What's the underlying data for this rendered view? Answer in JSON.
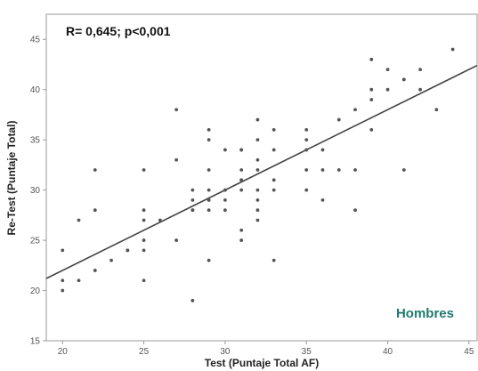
{
  "chart_data": {
    "type": "scatter",
    "annotation": "R= 0,645; p<0,001",
    "group_label": "Hombres",
    "xlabel": "Test (Puntaje Total AF)",
    "ylabel": "Re-Test (Puntaje Total)",
    "xlim": [
      19,
      45.5
    ],
    "ylim": [
      15,
      47.5
    ],
    "x_ticks": [
      20,
      25,
      30,
      35,
      40,
      45
    ],
    "y_ticks": [
      15,
      20,
      25,
      30,
      35,
      40,
      45
    ],
    "grid": false,
    "fit_line": {
      "x": [
        19,
        45.5
      ],
      "y": [
        21.2,
        42.4
      ]
    },
    "points": [
      {
        "x": 20,
        "y": 24
      },
      {
        "x": 20,
        "y": 21
      },
      {
        "x": 20,
        "y": 20
      },
      {
        "x": 21,
        "y": 27
      },
      {
        "x": 21,
        "y": 21
      },
      {
        "x": 22,
        "y": 32
      },
      {
        "x": 22,
        "y": 28
      },
      {
        "x": 22,
        "y": 22
      },
      {
        "x": 23,
        "y": 23
      },
      {
        "x": 24,
        "y": 24
      },
      {
        "x": 24,
        "y": 24
      },
      {
        "x": 25,
        "y": 32
      },
      {
        "x": 25,
        "y": 28
      },
      {
        "x": 25,
        "y": 27
      },
      {
        "x": 25,
        "y": 25
      },
      {
        "x": 25,
        "y": 24
      },
      {
        "x": 25,
        "y": 21
      },
      {
        "x": 26,
        "y": 27
      },
      {
        "x": 27,
        "y": 38
      },
      {
        "x": 27,
        "y": 33
      },
      {
        "x": 27,
        "y": 25
      },
      {
        "x": 28,
        "y": 30
      },
      {
        "x": 28,
        "y": 29
      },
      {
        "x": 28,
        "y": 28
      },
      {
        "x": 28,
        "y": 28
      },
      {
        "x": 28,
        "y": 19
      },
      {
        "x": 29,
        "y": 36
      },
      {
        "x": 29,
        "y": 35
      },
      {
        "x": 29,
        "y": 32
      },
      {
        "x": 29,
        "y": 30
      },
      {
        "x": 29,
        "y": 29
      },
      {
        "x": 29,
        "y": 29
      },
      {
        "x": 29,
        "y": 28
      },
      {
        "x": 29,
        "y": 23
      },
      {
        "x": 30,
        "y": 34
      },
      {
        "x": 30,
        "y": 30
      },
      {
        "x": 30,
        "y": 30
      },
      {
        "x": 30,
        "y": 29
      },
      {
        "x": 30,
        "y": 28
      },
      {
        "x": 31,
        "y": 34
      },
      {
        "x": 31,
        "y": 34
      },
      {
        "x": 31,
        "y": 32
      },
      {
        "x": 31,
        "y": 31
      },
      {
        "x": 31,
        "y": 31
      },
      {
        "x": 31,
        "y": 30
      },
      {
        "x": 31,
        "y": 26
      },
      {
        "x": 31,
        "y": 25
      },
      {
        "x": 32,
        "y": 37
      },
      {
        "x": 32,
        "y": 35
      },
      {
        "x": 32,
        "y": 33
      },
      {
        "x": 32,
        "y": 32
      },
      {
        "x": 32,
        "y": 30
      },
      {
        "x": 32,
        "y": 29
      },
      {
        "x": 32,
        "y": 28
      },
      {
        "x": 32,
        "y": 27
      },
      {
        "x": 33,
        "y": 36
      },
      {
        "x": 33,
        "y": 34
      },
      {
        "x": 33,
        "y": 31
      },
      {
        "x": 33,
        "y": 30
      },
      {
        "x": 33,
        "y": 23
      },
      {
        "x": 35,
        "y": 36
      },
      {
        "x": 35,
        "y": 35
      },
      {
        "x": 35,
        "y": 34
      },
      {
        "x": 35,
        "y": 32
      },
      {
        "x": 35,
        "y": 30
      },
      {
        "x": 36,
        "y": 34
      },
      {
        "x": 36,
        "y": 32
      },
      {
        "x": 36,
        "y": 29
      },
      {
        "x": 37,
        "y": 37
      },
      {
        "x": 37,
        "y": 32
      },
      {
        "x": 38,
        "y": 38
      },
      {
        "x": 38,
        "y": 32
      },
      {
        "x": 38,
        "y": 28
      },
      {
        "x": 39,
        "y": 43
      },
      {
        "x": 39,
        "y": 40
      },
      {
        "x": 39,
        "y": 39
      },
      {
        "x": 39,
        "y": 36
      },
      {
        "x": 40,
        "y": 42
      },
      {
        "x": 40,
        "y": 40
      },
      {
        "x": 41,
        "y": 41
      },
      {
        "x": 41,
        "y": 41
      },
      {
        "x": 41,
        "y": 32
      },
      {
        "x": 42,
        "y": 42
      },
      {
        "x": 42,
        "y": 40
      },
      {
        "x": 43,
        "y": 38
      },
      {
        "x": 44,
        "y": 44
      }
    ],
    "colors": {
      "point": "#555555",
      "fit_line": "#444444",
      "axis": "#9a9a9a",
      "group_label": "#1f7a6e"
    }
  }
}
